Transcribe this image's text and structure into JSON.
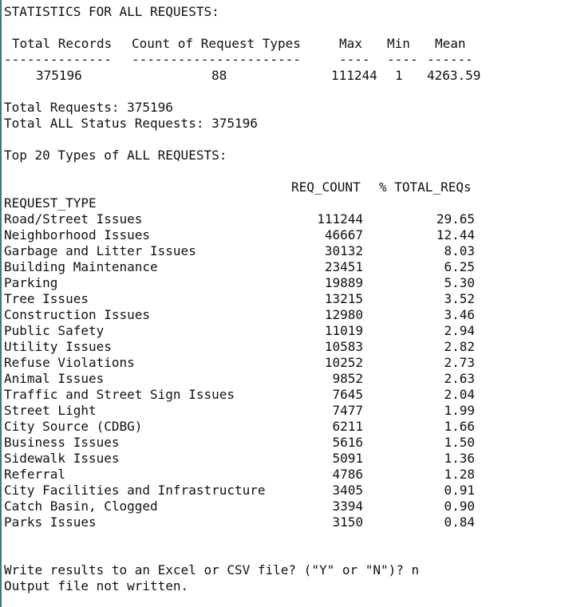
{
  "terminal": {
    "header": "STATISTICS FOR ALL REQUESTS:",
    "summary_columns": {
      "total_records": "Total Records",
      "count_types": "Count of Request Types",
      "max": "Max",
      "min": "Min",
      "mean": "Mean"
    },
    "summary_dashes": {
      "total_records": "--------------",
      "count_types": "----------------------",
      "max": "----",
      "min": "----",
      "mean": "------"
    },
    "summary_values": {
      "total_records": "375196",
      "count_types": "88",
      "max": "111244",
      "min": "1",
      "mean": "4263.59"
    },
    "total_requests": "Total Requests: 375196",
    "total_status": "Total ALL Status Requests: 375196",
    "top_title": "Top 20 Types of ALL REQUESTS:",
    "table_headers": {
      "req_count": "REQ_COUNT",
      "pct": "% TOTAL_REQs",
      "type": "REQUEST_TYPE"
    },
    "rows": [
      {
        "type": "Road/Street Issues",
        "count": "111244",
        "pct": "29.65"
      },
      {
        "type": "Neighborhood Issues",
        "count": "46667",
        "pct": "12.44"
      },
      {
        "type": "Garbage and Litter Issues",
        "count": "30132",
        "pct": "8.03"
      },
      {
        "type": "Building Maintenance",
        "count": "23451",
        "pct": "6.25"
      },
      {
        "type": "Parking",
        "count": "19889",
        "pct": "5.30"
      },
      {
        "type": "Tree Issues",
        "count": "13215",
        "pct": "3.52"
      },
      {
        "type": "Construction Issues",
        "count": "12980",
        "pct": "3.46"
      },
      {
        "type": "Public Safety",
        "count": "11019",
        "pct": "2.94"
      },
      {
        "type": "Utility Issues",
        "count": "10583",
        "pct": "2.82"
      },
      {
        "type": "Refuse Violations",
        "count": "10252",
        "pct": "2.73"
      },
      {
        "type": "Animal Issues",
        "count": "9852",
        "pct": "2.63"
      },
      {
        "type": "Traffic and Street Sign Issues",
        "count": "7645",
        "pct": "2.04"
      },
      {
        "type": "Street Light",
        "count": "7477",
        "pct": "1.99"
      },
      {
        "type": "City Source (CDBG)",
        "count": "6211",
        "pct": "1.66"
      },
      {
        "type": "Business Issues",
        "count": "5616",
        "pct": "1.50"
      },
      {
        "type": "Sidewalk Issues",
        "count": "5091",
        "pct": "1.36"
      },
      {
        "type": "Referral",
        "count": "4786",
        "pct": "1.28"
      },
      {
        "type": "City Facilities and Infrastructure",
        "count": "3405",
        "pct": "0.91"
      },
      {
        "type": "Catch Basin, Clogged",
        "count": "3394",
        "pct": "0.90"
      },
      {
        "type": "Parks Issues",
        "count": "3150",
        "pct": "0.84"
      }
    ],
    "prompt": "Write results to an Excel or CSV file? (\"Y\" or \"N\")? n",
    "result": "Output file not written."
  }
}
